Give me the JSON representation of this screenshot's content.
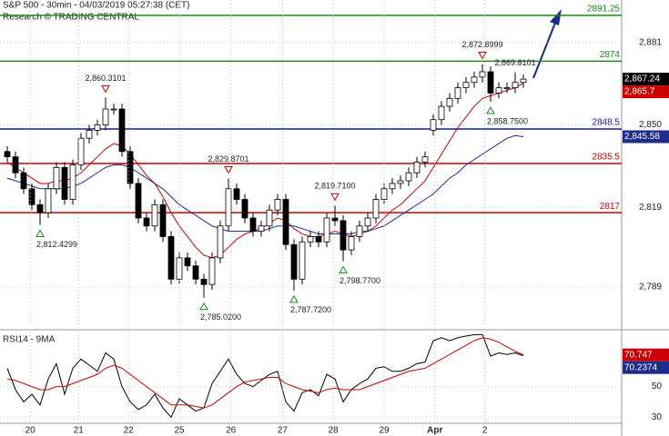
{
  "header": {
    "title": "S&P 500 - 30min - 04/03/2019 05:27:38 (CET)",
    "credit": "Research © TRADING CENTRAL"
  },
  "chart_data": [
    {
      "type": "candlestick",
      "open": [
        2840,
        2838,
        2832,
        2826,
        2820,
        2817,
        2826,
        2834,
        2822,
        2835,
        2845,
        2848,
        2850,
        2856,
        2856,
        2840,
        2828,
        2815,
        2812,
        2820,
        2808,
        2792,
        2800,
        2797,
        2792,
        2790,
        2800,
        2812,
        2826,
        2822,
        2815,
        2810,
        2812,
        2818,
        2822,
        2805,
        2792,
        2806,
        2808,
        2806,
        2815,
        2814,
        2803,
        2808,
        2812,
        2815,
        2822,
        2826,
        2828,
        2829,
        2832,
        2836,
        2848,
        2852,
        2857,
        2860,
        2864,
        2866,
        2868,
        2870,
        2862,
        2864,
        2864,
        2866
      ],
      "high": [
        2842,
        2840,
        2834,
        2828,
        2822,
        2828,
        2836,
        2836,
        2837,
        2847,
        2850,
        2852,
        2860.3101,
        2858,
        2858,
        2842,
        2830,
        2817,
        2822,
        2822,
        2810,
        2802,
        2802,
        2799,
        2794,
        2802,
        2814,
        2829.8701,
        2828,
        2824,
        2817,
        2814,
        2820,
        2824,
        2824,
        2807,
        2808,
        2810,
        2810,
        2817,
        2819.71,
        2816,
        2810,
        2814,
        2817,
        2824,
        2828,
        2830,
        2831,
        2834,
        2838,
        2840,
        2854,
        2859,
        2862,
        2866,
        2868,
        2870,
        2872.8999,
        2872,
        2866,
        2866,
        2869.8101,
        2869
      ],
      "low": [
        2836,
        2830,
        2824,
        2818,
        2812.4299,
        2815,
        2824,
        2820,
        2820,
        2833,
        2843,
        2846,
        2848,
        2854,
        2838,
        2826,
        2813,
        2810,
        2810,
        2806,
        2790,
        2790,
        2795,
        2790,
        2785.02,
        2788,
        2798,
        2810,
        2820,
        2813,
        2808,
        2808,
        2810,
        2816,
        2803,
        2787.72,
        2790,
        2804,
        2804,
        2804,
        2812,
        2798.77,
        2801,
        2806,
        2810,
        2813,
        2820,
        2824,
        2826,
        2827,
        2830,
        2834,
        2846,
        2850,
        2855,
        2858,
        2862,
        2864,
        2866,
        2858.75,
        2860,
        2862,
        2862,
        2864
      ],
      "close": [
        2838,
        2832,
        2826,
        2820,
        2817,
        2826,
        2834,
        2822,
        2835,
        2845,
        2848,
        2850,
        2856,
        2856,
        2840,
        2828,
        2815,
        2812,
        2820,
        2808,
        2792,
        2800,
        2797,
        2792,
        2790,
        2800,
        2812,
        2826,
        2822,
        2815,
        2810,
        2812,
        2818,
        2822,
        2805,
        2792,
        2806,
        2808,
        2806,
        2815,
        2814,
        2803,
        2808,
        2812,
        2815,
        2822,
        2826,
        2828,
        2829,
        2832,
        2836,
        2838,
        2852,
        2857,
        2860,
        2864,
        2866,
        2868,
        2870,
        2862,
        2864,
        2864,
        2866,
        2867.24
      ],
      "series": [
        {
          "color": "#cc0000",
          "values": [
            2836,
            2834,
            2832,
            2830,
            2828,
            2828,
            2829,
            2829,
            2830,
            2832,
            2835,
            2838,
            2841,
            2843,
            2842,
            2839,
            2835,
            2831,
            2828,
            2823,
            2817,
            2812,
            2808,
            2804,
            2801,
            2800,
            2801,
            2804,
            2807,
            2809,
            2810,
            2811,
            2813,
            2815,
            2814,
            2811,
            2809,
            2808,
            2808,
            2809,
            2810,
            2809,
            2808,
            2809,
            2810,
            2812,
            2815,
            2818,
            2820,
            2823,
            2826,
            2829,
            2834,
            2839,
            2844,
            2849,
            2853,
            2857,
            2860,
            2861,
            2862,
            2863,
            2864,
            2865.7
          ]
        },
        {
          "color": "#1f2d8a",
          "values": [
            2830,
            2829,
            2828,
            2827,
            2826,
            2826,
            2826,
            2826,
            2827,
            2828,
            2830,
            2832,
            2834,
            2835,
            2835,
            2834,
            2832,
            2830,
            2828,
            2826,
            2823,
            2820,
            2818,
            2816,
            2814,
            2812,
            2811,
            2810,
            2810,
            2810,
            2810,
            2810,
            2811,
            2812,
            2812,
            2812,
            2811,
            2810,
            2809,
            2809,
            2809,
            2809,
            2809,
            2810,
            2810,
            2811,
            2812,
            2814,
            2816,
            2818,
            2820,
            2822,
            2824,
            2827,
            2830,
            2832,
            2835,
            2837,
            2839,
            2841,
            2843,
            2845,
            2846,
            2845.58
          ]
        }
      ],
      "ylim": [
        2774,
        2897
      ],
      "yticks": [
        {
          "value": 2881,
          "label": "2,881"
        },
        {
          "value": 2850,
          "label": "2,850"
        },
        {
          "value": 2819,
          "label": "2,819"
        },
        {
          "value": 2789,
          "label": "2,789"
        }
      ],
      "xticks": [
        {
          "value": 2.8,
          "label": "20"
        },
        {
          "value": 8.7,
          "label": "21"
        },
        {
          "value": 14.8,
          "label": "22"
        },
        {
          "value": 21,
          "label": "25"
        },
        {
          "value": 27.3,
          "label": "26"
        },
        {
          "value": 33.6,
          "label": "27"
        },
        {
          "value": 39.8,
          "label": "28"
        },
        {
          "value": 46,
          "label": "29"
        },
        {
          "value": 52.2,
          "label": "Apr"
        },
        {
          "value": 58.3,
          "label": "2"
        }
      ],
      "grid": true,
      "levels": [
        {
          "value": 2891.25,
          "color": "#1a8c1a"
        },
        {
          "value": 2874,
          "color": "#1a8c1a"
        },
        {
          "value": 2848.5,
          "color": "#1a1a9c"
        },
        {
          "value": 2835.5,
          "color": "#cc0000"
        },
        {
          "value": 2817,
          "color": "#cc0000"
        }
      ],
      "annotations": [
        {
          "index": 12,
          "kind": "high",
          "value": 2860.3101,
          "label": "2,860.3101"
        },
        {
          "index": 4,
          "kind": "low",
          "value": 2812.4299,
          "label": "2,812.4299"
        },
        {
          "index": 27,
          "kind": "high",
          "value": 2829.8701,
          "label": "2,829.8701"
        },
        {
          "index": 24,
          "kind": "low",
          "value": 2785.02,
          "label": "2,785.0200"
        },
        {
          "index": 35,
          "kind": "low",
          "value": 2787.72,
          "label": "2,787.7200"
        },
        {
          "index": 40,
          "kind": "high",
          "value": 2819.71,
          "label": "2,819.7100"
        },
        {
          "index": 41,
          "kind": "low",
          "value": 2798.77,
          "label": "2,798.7700"
        },
        {
          "index": 58,
          "kind": "high",
          "value": 2872.8999,
          "label": "2,872.8999"
        },
        {
          "index": 59,
          "kind": "low",
          "value": 2858.75,
          "label": "2,858.7500"
        },
        {
          "index": 62,
          "kind": "none",
          "value": 2869.8101,
          "label": "2,869.8101"
        }
      ],
      "tags": [
        {
          "value": 2867.24,
          "label": "2,867.24",
          "color": "#000000"
        },
        {
          "value": 2865.7,
          "label": "2,865.7",
          "color": "#cc0000"
        },
        {
          "value": 2845.58,
          "label": "2,845.58",
          "color": "#1f2d8a"
        }
      ]
    },
    {
      "type": "line",
      "title": "RSI14 - 9MA",
      "series": [
        {
          "color": "#000000",
          "values": [
            62,
            48,
            40,
            45,
            38,
            55,
            65,
            45,
            62,
            68,
            64,
            60,
            72,
            68,
            50,
            40,
            35,
            38,
            45,
            36,
            30,
            42,
            38,
            34,
            36,
            52,
            60,
            68,
            58,
            52,
            50,
            54,
            58,
            60,
            40,
            34,
            46,
            48,
            44,
            58,
            55,
            40,
            48,
            52,
            55,
            62,
            63,
            60,
            60,
            62,
            65,
            66,
            80,
            82,
            80,
            82,
            83,
            84,
            84,
            70,
            72,
            71,
            72,
            70.2374
          ]
        },
        {
          "color": "#cc0000",
          "values": [
            55,
            54,
            52,
            50,
            48,
            48,
            50,
            50,
            52,
            54,
            56,
            58,
            62,
            64,
            62,
            58,
            54,
            50,
            46,
            42,
            38,
            38,
            38,
            37,
            36,
            38,
            42,
            46,
            50,
            53,
            54,
            55,
            56,
            56,
            52,
            50,
            48,
            47,
            46,
            48,
            49,
            48,
            48,
            48,
            50,
            52,
            54,
            56,
            58,
            60,
            61,
            62,
            65,
            68,
            71,
            74,
            77,
            80,
            82,
            81,
            79,
            76,
            73,
            70.747
          ]
        }
      ],
      "ylim": [
        26,
        86
      ],
      "yticks": [
        50,
        30
      ],
      "tags": [
        {
          "value": 70.747,
          "label": "70.747",
          "color": "#cc0000"
        },
        {
          "value": 70.2374,
          "label": "70.2374",
          "color": "#1f2d8a"
        }
      ]
    }
  ]
}
